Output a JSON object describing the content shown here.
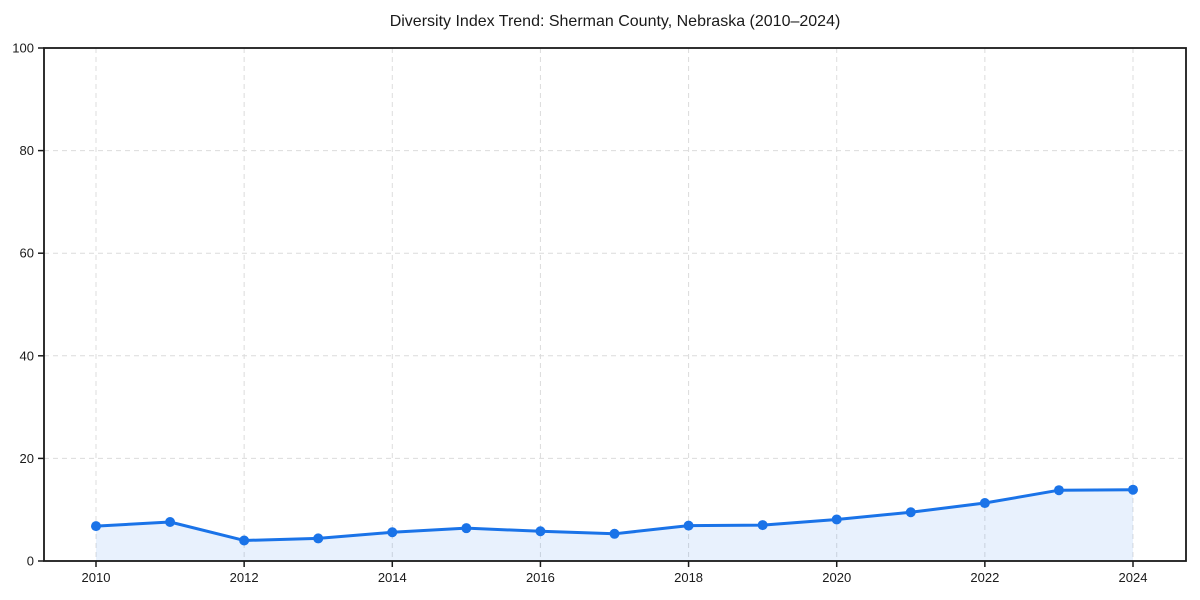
{
  "page": {
    "background_color": "#ffffff"
  },
  "chart_data": {
    "type": "area",
    "title": "Diversity Index Trend: Sherman County, Nebraska (2010–2024)",
    "series_name": "Diversity Index",
    "x": [
      2010,
      2011,
      2012,
      2013,
      2014,
      2015,
      2016,
      2017,
      2018,
      2019,
      2020,
      2021,
      2022,
      2023,
      2024
    ],
    "values": [
      6.8,
      7.6,
      4.0,
      4.4,
      5.6,
      6.4,
      5.8,
      5.3,
      6.9,
      7.0,
      8.1,
      9.5,
      11.3,
      13.8,
      13.9
    ],
    "xlabel": "",
    "ylabel": "",
    "ylim": [
      0,
      100
    ],
    "xlim": [
      2010,
      2024
    ],
    "xticks": [
      2010,
      2012,
      2014,
      2016,
      2018,
      2020,
      2022,
      2024
    ],
    "yticks": [
      0,
      20,
      40,
      60,
      80,
      100
    ],
    "grid": true,
    "grid_style": "dashed",
    "legend": false,
    "marker": "circle",
    "fill_opacity": 0.1,
    "colors": {
      "line": "#1a73e8",
      "grid": "#dcdcdc",
      "axis": "#1a1a1a",
      "text": "#1a1a1a",
      "background": "#ffffff"
    }
  }
}
